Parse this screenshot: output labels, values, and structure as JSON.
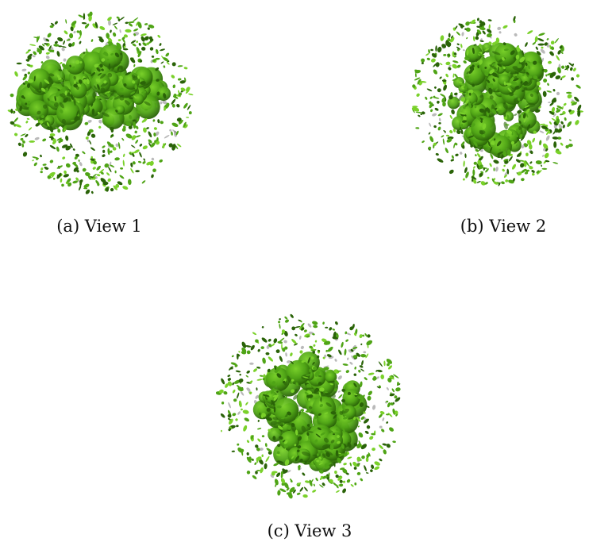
{
  "figure": {
    "panels": [
      {
        "id": "view1",
        "caption": "(a) View 1"
      },
      {
        "id": "view2",
        "caption": "(b) View 2"
      },
      {
        "id": "view3",
        "caption": "(c) View 3"
      }
    ],
    "colors": {
      "surface_light": "#7ad12a",
      "surface_mid": "#4fa416",
      "surface_dark": "#2a6308",
      "shadow": "#3a3a3a",
      "background": "#ffffff"
    }
  }
}
